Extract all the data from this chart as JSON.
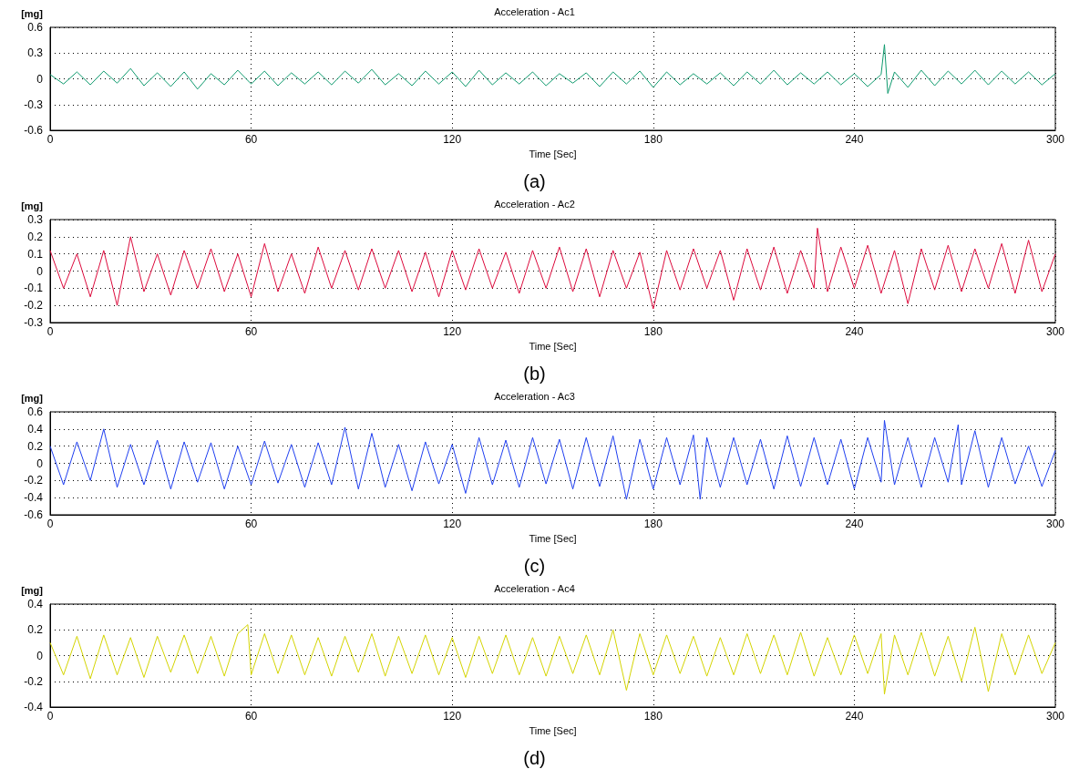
{
  "chart_data": [
    {
      "type": "line",
      "title": "Acceleration - Ac1",
      "xlabel": "Time [Sec]",
      "ylabel": "[mg]",
      "annotations": [
        "(a)"
      ],
      "xlim": [
        0,
        300
      ],
      "xticks": [
        0,
        60,
        120,
        180,
        240,
        300
      ],
      "ylim": [
        -0.6,
        0.6
      ],
      "yticks": [
        -0.6,
        -0.3,
        0,
        0.3,
        0.6
      ],
      "grid": true,
      "marker": "none",
      "line_style": "solid",
      "x": [
        0,
        4,
        8,
        12,
        16,
        20,
        24,
        28,
        32,
        36,
        40,
        44,
        48,
        52,
        56,
        60,
        64,
        68,
        72,
        76,
        80,
        84,
        88,
        92,
        96,
        100,
        104,
        108,
        112,
        116,
        120,
        124,
        128,
        132,
        136,
        140,
        144,
        148,
        152,
        156,
        160,
        164,
        168,
        172,
        176,
        180,
        184,
        188,
        192,
        196,
        200,
        204,
        208,
        212,
        216,
        220,
        224,
        228,
        232,
        236,
        240,
        244,
        248,
        249,
        250,
        252,
        256,
        260,
        264,
        268,
        272,
        276,
        280,
        284,
        288,
        292,
        296,
        300
      ],
      "series": [
        {
          "color": "#0f9a6e",
          "values": [
            0.05,
            -0.06,
            0.08,
            -0.07,
            0.09,
            -0.05,
            0.12,
            -0.08,
            0.07,
            -0.09,
            0.08,
            -0.12,
            0.06,
            -0.07,
            0.1,
            -0.06,
            0.09,
            -0.08,
            0.07,
            -0.06,
            0.08,
            -0.07,
            0.09,
            -0.05,
            0.11,
            -0.07,
            0.06,
            -0.08,
            0.09,
            -0.06,
            0.08,
            -0.09,
            0.1,
            -0.07,
            0.07,
            -0.06,
            0.08,
            -0.08,
            0.06,
            -0.05,
            0.07,
            -0.09,
            0.08,
            -0.06,
            0.09,
            -0.1,
            0.08,
            -0.07,
            0.06,
            -0.06,
            0.07,
            -0.08,
            0.08,
            -0.06,
            0.1,
            -0.07,
            0.07,
            -0.06,
            0.08,
            -0.07,
            0.06,
            -0.09,
            0.05,
            0.4,
            -0.17,
            0.08,
            -0.1,
            0.1,
            -0.08,
            0.09,
            -0.06,
            0.1,
            -0.07,
            0.09,
            -0.06,
            0.08,
            -0.07,
            0.06
          ]
        }
      ]
    },
    {
      "type": "line",
      "title": "Acceleration - Ac2",
      "xlabel": "Time [Sec]",
      "ylabel": "[mg]",
      "annotations": [
        "(b)"
      ],
      "xlim": [
        0,
        300
      ],
      "xticks": [
        0,
        60,
        120,
        180,
        240,
        300
      ],
      "ylim": [
        -0.3,
        0.3
      ],
      "yticks": [
        -0.3,
        -0.2,
        -0.1,
        0,
        0.1,
        0.2,
        0.3
      ],
      "grid": true,
      "marker": "none",
      "line_style": "solid",
      "x": [
        0,
        4,
        8,
        12,
        16,
        20,
        24,
        28,
        32,
        36,
        40,
        44,
        48,
        52,
        56,
        60,
        64,
        68,
        72,
        76,
        80,
        84,
        88,
        92,
        96,
        100,
        104,
        108,
        112,
        116,
        120,
        124,
        128,
        132,
        136,
        140,
        144,
        148,
        152,
        156,
        160,
        164,
        168,
        172,
        176,
        180,
        184,
        188,
        192,
        196,
        200,
        204,
        208,
        212,
        216,
        220,
        224,
        228,
        229,
        232,
        236,
        240,
        244,
        248,
        252,
        256,
        260,
        264,
        268,
        272,
        276,
        280,
        284,
        288,
        292,
        296,
        300
      ],
      "series": [
        {
          "color": "#dc0a3c",
          "values": [
            0.12,
            -0.1,
            0.1,
            -0.15,
            0.12,
            -0.2,
            0.2,
            -0.12,
            0.1,
            -0.14,
            0.12,
            -0.1,
            0.13,
            -0.12,
            0.1,
            -0.15,
            0.16,
            -0.12,
            0.1,
            -0.13,
            0.14,
            -0.1,
            0.12,
            -0.11,
            0.13,
            -0.1,
            0.12,
            -0.12,
            0.11,
            -0.15,
            0.12,
            -0.11,
            0.13,
            -0.1,
            0.11,
            -0.13,
            0.12,
            -0.1,
            0.14,
            -0.12,
            0.13,
            -0.15,
            0.12,
            -0.1,
            0.11,
            -0.22,
            0.12,
            -0.11,
            0.13,
            -0.1,
            0.12,
            -0.17,
            0.13,
            -0.11,
            0.14,
            -0.13,
            0.12,
            -0.1,
            0.25,
            -0.12,
            0.14,
            -0.1,
            0.15,
            -0.13,
            0.12,
            -0.19,
            0.13,
            -0.11,
            0.15,
            -0.12,
            0.13,
            -0.1,
            0.16,
            -0.13,
            0.18,
            -0.12,
            0.1
          ]
        }
      ]
    },
    {
      "type": "line",
      "title": "Acceleration - Ac3",
      "xlabel": "Time [Sec]",
      "ylabel": "[mg]",
      "annotations": [
        "(c)"
      ],
      "xlim": [
        0,
        300
      ],
      "xticks": [
        0,
        60,
        120,
        180,
        240,
        300
      ],
      "ylim": [
        -0.6,
        0.6
      ],
      "yticks": [
        -0.6,
        -0.4,
        -0.2,
        0,
        0.2,
        0.4,
        0.6
      ],
      "grid": true,
      "marker": "none",
      "line_style": "solid",
      "x": [
        0,
        4,
        8,
        12,
        16,
        20,
        24,
        28,
        32,
        36,
        40,
        44,
        48,
        52,
        56,
        60,
        64,
        68,
        72,
        76,
        80,
        84,
        88,
        92,
        96,
        100,
        104,
        108,
        112,
        116,
        120,
        124,
        128,
        132,
        136,
        140,
        144,
        148,
        152,
        156,
        160,
        164,
        168,
        172,
        176,
        180,
        184,
        188,
        192,
        194,
        196,
        200,
        204,
        208,
        212,
        216,
        220,
        224,
        228,
        232,
        236,
        240,
        244,
        248,
        249,
        252,
        256,
        260,
        264,
        268,
        271,
        272,
        276,
        280,
        284,
        288,
        292,
        296,
        300
      ],
      "series": [
        {
          "color": "#1f3ff0",
          "values": [
            0.2,
            -0.25,
            0.25,
            -0.2,
            0.4,
            -0.28,
            0.22,
            -0.25,
            0.27,
            -0.3,
            0.25,
            -0.22,
            0.24,
            -0.3,
            0.2,
            -0.25,
            0.26,
            -0.23,
            0.22,
            -0.28,
            0.24,
            -0.25,
            0.42,
            -0.3,
            0.35,
            -0.28,
            0.22,
            -0.32,
            0.25,
            -0.24,
            0.22,
            -0.35,
            0.3,
            -0.25,
            0.27,
            -0.28,
            0.3,
            -0.24,
            0.28,
            -0.3,
            0.3,
            -0.27,
            0.32,
            -0.42,
            0.28,
            -0.3,
            0.3,
            -0.25,
            0.33,
            -0.42,
            0.3,
            -0.28,
            0.3,
            -0.25,
            0.28,
            -0.3,
            0.32,
            -0.27,
            0.3,
            -0.25,
            0.28,
            -0.3,
            0.3,
            -0.22,
            0.5,
            -0.25,
            0.3,
            -0.28,
            0.3,
            -0.22,
            0.45,
            -0.25,
            0.38,
            -0.28,
            0.3,
            -0.24,
            0.2,
            -0.27,
            0.15
          ]
        }
      ]
    },
    {
      "type": "line",
      "title": "Acceleration - Ac4",
      "xlabel": "Time [Sec]",
      "ylabel": "[mg]",
      "annotations": [
        "(d)"
      ],
      "xlim": [
        0,
        300
      ],
      "xticks": [
        0,
        60,
        120,
        180,
        240,
        300
      ],
      "ylim": [
        -0.4,
        0.4
      ],
      "yticks": [
        -0.4,
        -0.2,
        0,
        0.2,
        0.4
      ],
      "grid": true,
      "marker": "none",
      "line_style": "solid",
      "x": [
        0,
        4,
        8,
        12,
        16,
        20,
        24,
        28,
        32,
        36,
        40,
        44,
        48,
        52,
        56,
        59,
        60,
        64,
        68,
        72,
        76,
        80,
        84,
        88,
        92,
        96,
        100,
        104,
        108,
        112,
        116,
        120,
        124,
        128,
        132,
        136,
        140,
        144,
        148,
        152,
        156,
        160,
        164,
        168,
        172,
        176,
        180,
        184,
        188,
        192,
        196,
        200,
        204,
        208,
        212,
        216,
        220,
        224,
        228,
        232,
        236,
        240,
        244,
        248,
        249,
        252,
        256,
        260,
        264,
        268,
        272,
        276,
        280,
        284,
        288,
        292,
        296,
        300
      ],
      "series": [
        {
          "color": "#d4d400",
          "values": [
            0.1,
            -0.15,
            0.15,
            -0.18,
            0.16,
            -0.15,
            0.14,
            -0.17,
            0.15,
            -0.13,
            0.16,
            -0.14,
            0.15,
            -0.16,
            0.17,
            0.24,
            -0.15,
            0.17,
            -0.14,
            0.16,
            -0.15,
            0.14,
            -0.16,
            0.15,
            -0.13,
            0.17,
            -0.16,
            0.15,
            -0.14,
            0.16,
            -0.15,
            0.14,
            -0.17,
            0.15,
            -0.14,
            0.16,
            -0.15,
            0.14,
            -0.16,
            0.15,
            -0.14,
            0.16,
            -0.15,
            0.2,
            -0.27,
            0.17,
            -0.15,
            0.16,
            -0.14,
            0.15,
            -0.16,
            0.14,
            -0.15,
            0.17,
            -0.14,
            0.16,
            -0.15,
            0.18,
            -0.16,
            0.14,
            -0.15,
            0.16,
            -0.14,
            0.17,
            -0.3,
            0.16,
            -0.15,
            0.18,
            -0.16,
            0.15,
            -0.2,
            0.22,
            -0.28,
            0.17,
            -0.15,
            0.16,
            -0.14,
            0.1
          ]
        }
      ]
    }
  ]
}
